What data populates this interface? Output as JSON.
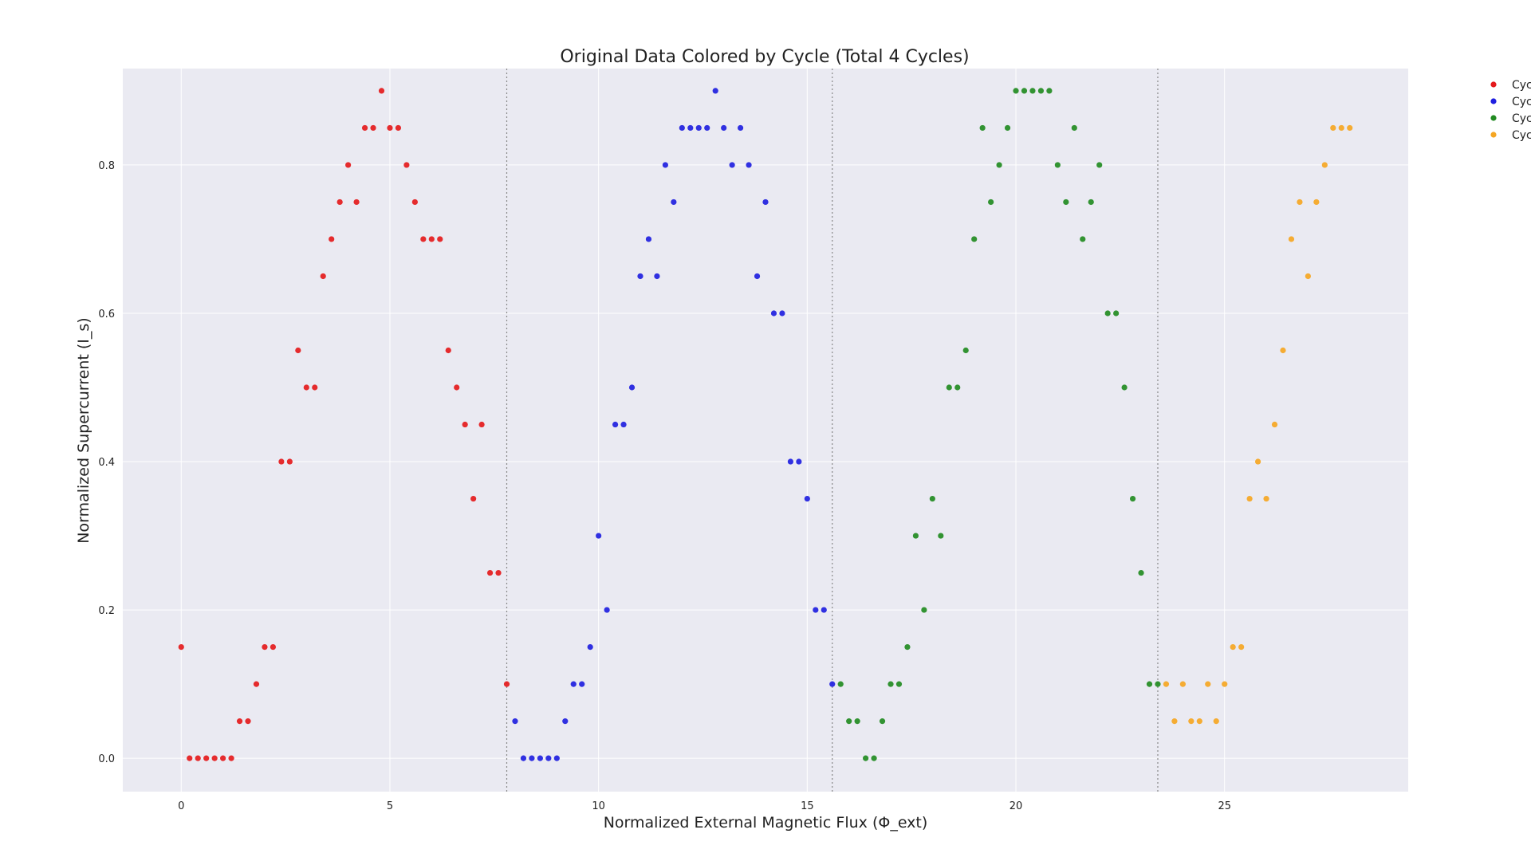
{
  "chart_data": {
    "type": "scatter",
    "title": "Original Data Colored by Cycle (Total 4 Cycles)",
    "xlabel": "Normalized External Magnetic Flux (Φ_ext)",
    "ylabel": "Normalized Supercurrent (I_s)",
    "xlim": [
      -1.4,
      29.4
    ],
    "ylim": [
      -0.045,
      0.93
    ],
    "xticks": [
      0,
      5,
      10,
      15,
      20,
      25
    ],
    "yticks": [
      0.0,
      0.2,
      0.4,
      0.6,
      0.8
    ],
    "grid": true,
    "legend_position": "outside-top-right",
    "cycle_boundaries": [
      7.8,
      15.6,
      23.4
    ],
    "series": [
      {
        "name": "Cyc",
        "color": "#e41a1c",
        "x": [
          0.0,
          0.2,
          0.4,
          0.6,
          0.8,
          1.0,
          1.2,
          1.4,
          1.6,
          1.8,
          2.0,
          2.2,
          2.4,
          2.6,
          2.8,
          3.0,
          3.2,
          3.4,
          3.6,
          3.8,
          4.0,
          4.2,
          4.4,
          4.6,
          4.8,
          5.0,
          5.2,
          5.4,
          5.6,
          5.8,
          6.0,
          6.2,
          6.4,
          6.6,
          6.8,
          7.0,
          7.2,
          7.4,
          7.6,
          7.8
        ],
        "y": [
          0.15,
          0.0,
          0.0,
          0.0,
          0.0,
          0.0,
          0.0,
          0.05,
          0.05,
          0.1,
          0.15,
          0.15,
          0.4,
          0.4,
          0.55,
          0.5,
          0.5,
          0.65,
          0.7,
          0.75,
          0.8,
          0.75,
          0.85,
          0.85,
          0.9,
          0.85,
          0.85,
          0.8,
          0.75,
          0.7,
          0.7,
          0.7,
          0.55,
          0.5,
          0.45,
          0.35,
          0.45,
          0.25,
          0.25,
          0.1
        ]
      },
      {
        "name": "Cyc",
        "color": "#1f1fe0",
        "x": [
          8.0,
          8.2,
          8.4,
          8.6,
          8.8,
          9.0,
          9.2,
          9.4,
          9.6,
          9.8,
          10.0,
          10.2,
          10.4,
          10.6,
          10.8,
          11.0,
          11.2,
          11.4,
          11.6,
          11.8,
          12.0,
          12.2,
          12.4,
          12.6,
          12.8,
          13.0,
          13.2,
          13.4,
          13.6,
          13.8,
          14.0,
          14.2,
          14.4,
          14.6,
          14.8,
          15.0,
          15.2,
          15.4,
          15.6
        ],
        "y": [
          0.05,
          0.0,
          0.0,
          0.0,
          0.0,
          0.0,
          0.05,
          0.1,
          0.1,
          0.15,
          0.3,
          0.2,
          0.45,
          0.45,
          0.5,
          0.65,
          0.7,
          0.65,
          0.8,
          0.75,
          0.85,
          0.85,
          0.85,
          0.85,
          0.9,
          0.85,
          0.8,
          0.85,
          0.8,
          0.65,
          0.75,
          0.6,
          0.6,
          0.4,
          0.4,
          0.35,
          0.2,
          0.2,
          0.1
        ]
      },
      {
        "name": "Cyc",
        "color": "#228b22",
        "x": [
          15.8,
          16.0,
          16.2,
          16.4,
          16.6,
          16.8,
          17.0,
          17.2,
          17.4,
          17.6,
          17.8,
          18.0,
          18.2,
          18.4,
          18.6,
          18.8,
          19.0,
          19.2,
          19.4,
          19.6,
          19.8,
          20.0,
          20.2,
          20.4,
          20.6,
          20.8,
          21.0,
          21.2,
          21.4,
          21.6,
          21.8,
          22.0,
          22.2,
          22.4,
          22.6,
          22.8,
          23.0,
          23.2,
          23.4
        ],
        "y": [
          0.1,
          0.05,
          0.05,
          0.0,
          0.0,
          0.05,
          0.1,
          0.1,
          0.15,
          0.3,
          0.2,
          0.35,
          0.3,
          0.5,
          0.5,
          0.55,
          0.7,
          0.85,
          0.75,
          0.8,
          0.85,
          0.9,
          0.9,
          0.9,
          0.9,
          0.9,
          0.8,
          0.75,
          0.85,
          0.7,
          0.75,
          0.8,
          0.6,
          0.6,
          0.5,
          0.35,
          0.25,
          0.1,
          0.1
        ]
      },
      {
        "name": "Cyc",
        "color": "#f5a623",
        "x": [
          23.6,
          23.8,
          24.0,
          24.2,
          24.4,
          24.6,
          24.8,
          25.0,
          25.2,
          25.4,
          25.6,
          25.8,
          26.0,
          26.2,
          26.4,
          26.6,
          26.8,
          27.0,
          27.2,
          27.4,
          27.6,
          27.8,
          28.0
        ],
        "y": [
          0.1,
          0.05,
          0.1,
          0.05,
          0.05,
          0.1,
          0.05,
          0.1,
          0.15,
          0.15,
          0.35,
          0.4,
          0.35,
          0.45,
          0.55,
          0.7,
          0.75,
          0.65,
          0.75,
          0.8,
          0.85,
          0.85,
          0.85
        ]
      }
    ]
  }
}
